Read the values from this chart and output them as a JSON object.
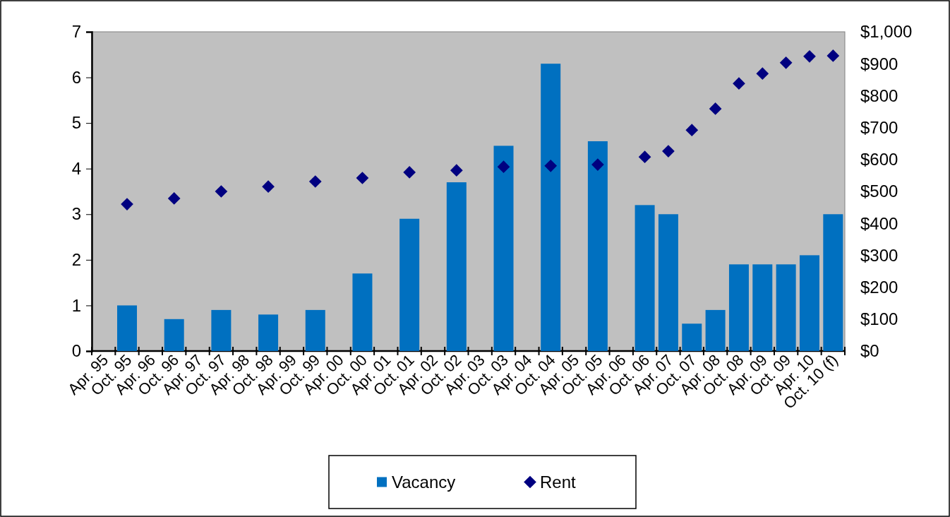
{
  "chart_data": {
    "type": "bar",
    "categories": [
      "Apr. 95",
      "Oct. 95",
      "Apr. 96",
      "Oct. 96",
      "Apr. 97",
      "Oct. 97",
      "Apr. 98",
      "Oct. 98",
      "Apr. 99",
      "Oct. 99",
      "Apr. 00",
      "Oct. 00",
      "Apr. 01",
      "Oct. 01",
      "Apr. 02",
      "Oct. 02",
      "Apr. 03",
      "Oct. 03",
      "Apr. 04",
      "Oct. 04",
      "Apr. 05",
      "Oct. 05",
      "Apr. 06",
      "Oct. 06",
      "Apr. 07",
      "Oct. 07",
      "Apr. 08",
      "Oct. 08",
      "Apr. 09",
      "Oct. 09",
      "Apr. 10",
      "Oct. 10 (f)"
    ],
    "series": [
      {
        "name": "Vacancy",
        "color": "#0070c0",
        "values": [
          null,
          1.0,
          null,
          0.7,
          null,
          0.9,
          null,
          0.8,
          null,
          0.9,
          null,
          1.7,
          null,
          2.9,
          null,
          3.7,
          null,
          4.5,
          null,
          6.3,
          null,
          4.6,
          null,
          3.2,
          3.0,
          0.6,
          0.9,
          1.9,
          1.9,
          1.9,
          2.1,
          3.0
        ]
      },
      {
        "name": "Rent",
        "type": "scatter",
        "axis": "y2",
        "color": "#000080",
        "values": [
          null,
          460,
          null,
          478,
          null,
          500,
          null,
          515,
          null,
          531,
          null,
          542,
          null,
          560,
          null,
          566,
          null,
          577,
          null,
          580,
          null,
          584,
          null,
          608,
          626,
          692,
          759,
          838,
          869,
          903,
          923,
          925
        ]
      }
    ],
    "ylim": [
      0,
      7
    ],
    "yticks": [
      0,
      1,
      2,
      3,
      4,
      5,
      6,
      7
    ],
    "y2lim": [
      0,
      1000
    ],
    "y2ticks": [
      {
        "value": 0,
        "label": "$0"
      },
      {
        "value": 100,
        "label": "$100"
      },
      {
        "value": 200,
        "label": "$200"
      },
      {
        "value": 300,
        "label": "$300"
      },
      {
        "value": 400,
        "label": "$400"
      },
      {
        "value": 500,
        "label": "$500"
      },
      {
        "value": 600,
        "label": "$600"
      },
      {
        "value": 700,
        "label": "$700"
      },
      {
        "value": 800,
        "label": "$800"
      },
      {
        "value": 900,
        "label": "$900"
      },
      {
        "value": 1000,
        "label": "$1,000"
      }
    ],
    "marker": "diamond",
    "grid": false,
    "legend": "bottom"
  }
}
